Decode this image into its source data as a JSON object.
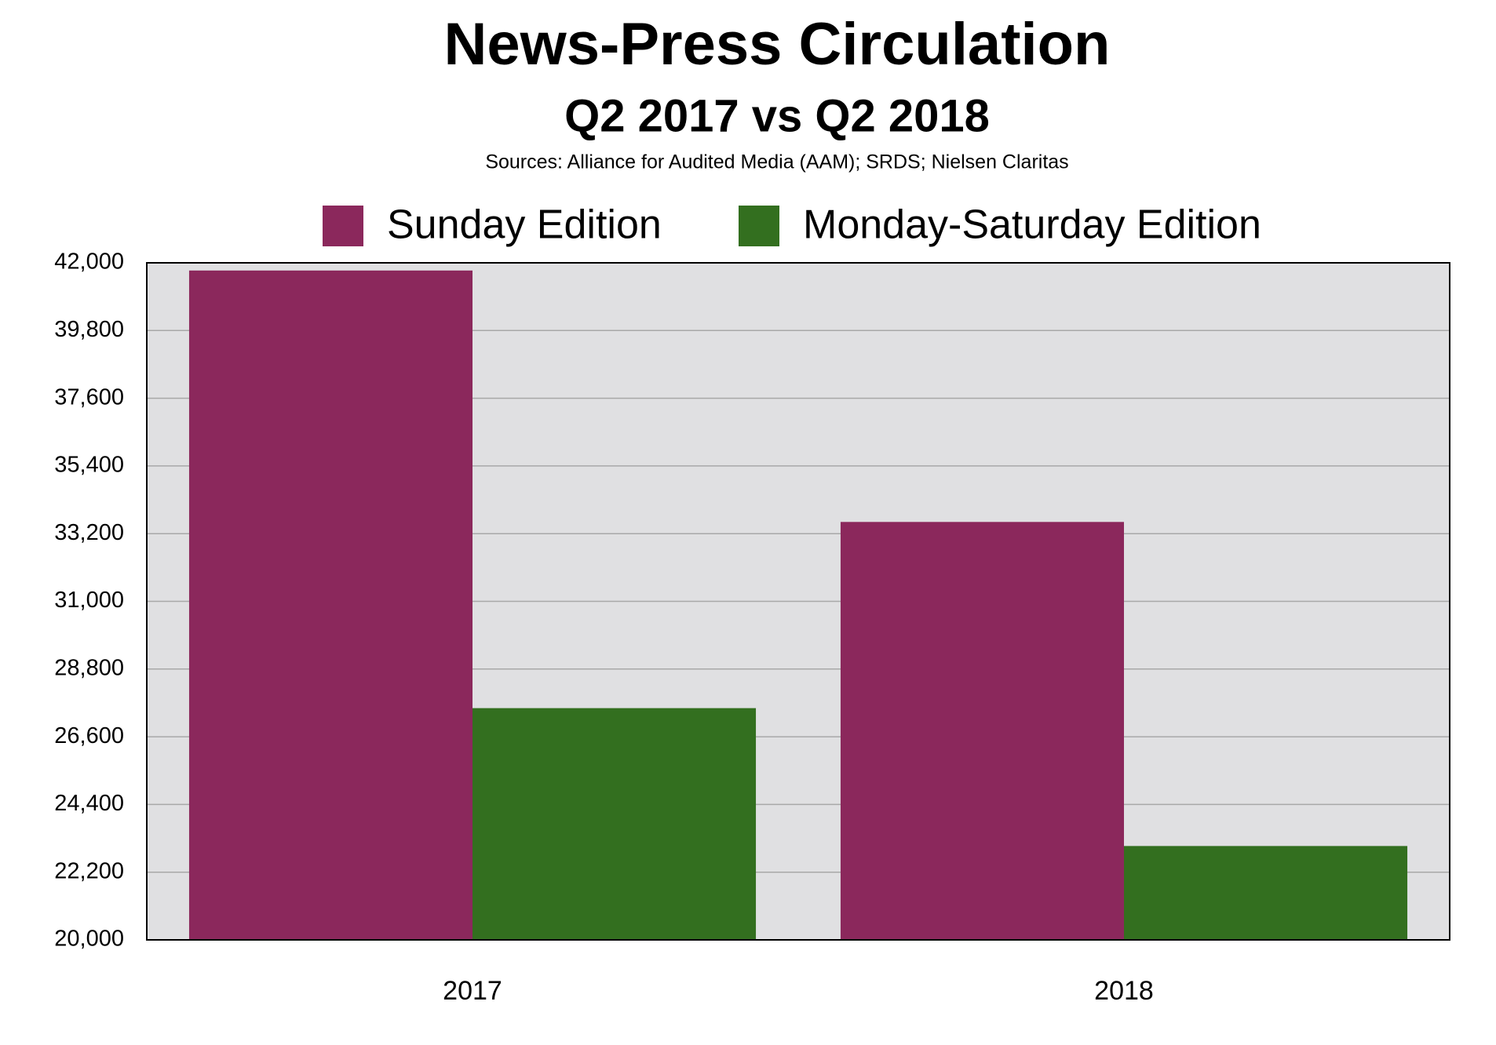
{
  "chart_data": {
    "type": "bar",
    "title": "News-Press Circulation",
    "subtitle": "Q2 2017 vs Q2 2018",
    "source": "Sources: Alliance for Audited Media (AAM); SRDS; Nielsen Claritas",
    "categories": [
      "2017",
      "2018"
    ],
    "series": [
      {
        "name": "Sunday Edition",
        "color": "#8b285c",
        "values": [
          41750,
          33580
        ]
      },
      {
        "name": "Monday-Saturday Edition",
        "color": "#336f1f",
        "values": [
          27530,
          23050
        ]
      }
    ],
    "ylim": [
      20000,
      42000
    ],
    "yticks": [
      {
        "value": 20000,
        "label": "20,000"
      },
      {
        "value": 22200,
        "label": "22,200"
      },
      {
        "value": 24400,
        "label": "24,400"
      },
      {
        "value": 26600,
        "label": "26,600"
      },
      {
        "value": 28800,
        "label": "28,800"
      },
      {
        "value": 31000,
        "label": "31,000"
      },
      {
        "value": 33200,
        "label": "33,200"
      },
      {
        "value": 35400,
        "label": "35,400"
      },
      {
        "value": 37600,
        "label": "37,600"
      },
      {
        "value": 39800,
        "label": "39,800"
      },
      {
        "value": 42000,
        "label": "42,000"
      }
    ],
    "grid": true,
    "legend": "top"
  }
}
